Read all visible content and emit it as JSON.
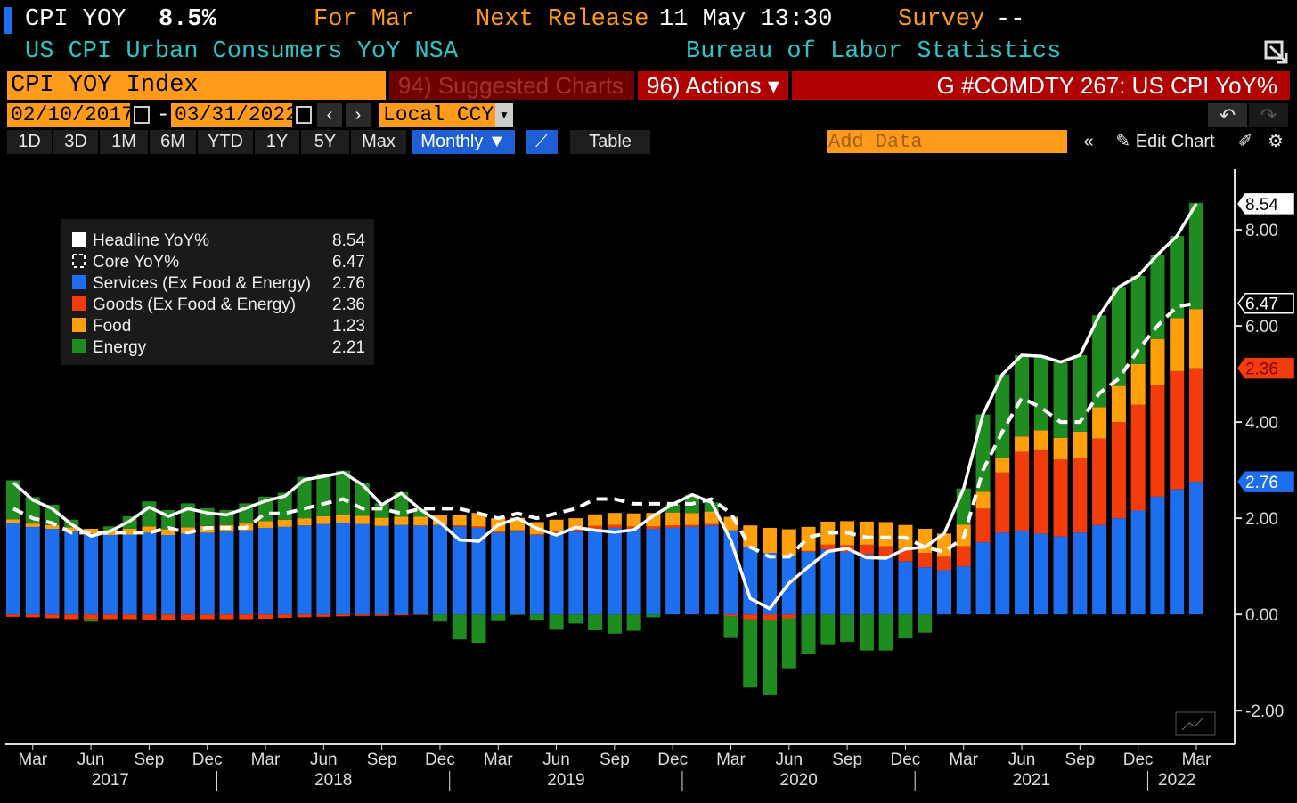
{
  "header": {
    "ticker": "CPI YOY",
    "last": "8.5%",
    "period": "For Mar",
    "release_label": "Next Release",
    "release_value": "11 May 13:30",
    "survey_label": "Survey",
    "survey_value": "--",
    "description": "US CPI Urban Consumers YoY NSA",
    "source": "Bureau of Labor Statistics"
  },
  "toolbar": {
    "security": "CPI YOY Index",
    "suggested": "94) Suggested Charts",
    "actions": "96) Actions ▾",
    "chart_name": "G #COMDTY 267: US CPI YoY%",
    "start_date": "02/10/2017",
    "date_separator": "-",
    "end_date": "03/31/2022",
    "currency": "Local CCY",
    "periods": [
      "1D",
      "3D",
      "1M",
      "6M",
      "YTD",
      "1Y",
      "5Y",
      "Max"
    ],
    "frequency": "Monthly ▼",
    "table": "Table",
    "add_data": "Add Data",
    "edit_chart": "Edit Chart"
  },
  "chart_data": {
    "type": "bar",
    "stacked": true,
    "categories": [
      null,
      "Mar",
      null,
      null,
      "Jun",
      null,
      null,
      "Sep",
      null,
      null,
      "Dec",
      null,
      null,
      "Mar",
      null,
      null,
      "Jun",
      null,
      null,
      "Sep",
      null,
      null,
      "Dec",
      null,
      null,
      "Mar",
      null,
      null,
      "Jun",
      null,
      null,
      "Sep",
      null,
      null,
      "Dec",
      null,
      null,
      "Mar",
      null,
      null,
      "Jun",
      null,
      null,
      "Sep",
      null,
      null,
      "Dec",
      null,
      null,
      "Mar",
      null,
      null,
      "Jun",
      null,
      null,
      "Sep",
      null,
      null,
      "Dec",
      null,
      null,
      "Mar"
    ],
    "years": [
      "2017",
      "2018",
      "2019",
      "2020",
      "2021",
      "2022"
    ],
    "ylim": [
      -2.7,
      9.26
    ],
    "yticks": [
      {
        "value": -2,
        "label": "-2.00"
      },
      {
        "value": 0,
        "label": "0.00"
      },
      {
        "value": 2,
        "label": "2.00"
      },
      {
        "value": 4,
        "label": "4.00"
      },
      {
        "value": 6,
        "label": "6.00"
      },
      {
        "value": 8,
        "label": "8.00"
      }
    ],
    "series": [
      {
        "name": "Headline YoY%",
        "type": "line",
        "color": "#ffffff",
        "values": [
          2.74,
          2.38,
          2.2,
          1.87,
          1.63,
          1.73,
          1.94,
          2.23,
          2.04,
          2.2,
          2.11,
          2.07,
          2.21,
          2.36,
          2.46,
          2.8,
          2.87,
          2.95,
          2.7,
          2.28,
          2.52,
          2.18,
          1.91,
          1.55,
          1.52,
          1.86,
          2.0,
          1.79,
          1.65,
          1.81,
          1.75,
          1.71,
          1.76,
          2.05,
          2.29,
          2.49,
          2.33,
          1.54,
          0.33,
          0.12,
          0.65,
          0.99,
          1.31,
          1.37,
          1.18,
          1.17,
          1.36,
          1.4,
          1.68,
          2.62,
          4.16,
          4.99,
          5.39,
          5.37,
          5.25,
          5.39,
          6.22,
          6.81,
          7.04,
          7.48,
          7.87,
          8.54
        ]
      },
      {
        "name": "Core YoY%",
        "type": "line",
        "dashed": true,
        "color": "#ffffff",
        "values": [
          2.2,
          2.0,
          1.9,
          1.7,
          1.7,
          1.7,
          1.7,
          1.7,
          1.8,
          1.7,
          1.8,
          1.8,
          1.8,
          2.1,
          2.1,
          2.2,
          2.3,
          2.4,
          2.2,
          2.2,
          2.1,
          2.2,
          2.2,
          2.2,
          2.1,
          2.0,
          2.1,
          2.0,
          2.1,
          2.2,
          2.4,
          2.4,
          2.3,
          2.3,
          2.3,
          2.3,
          2.4,
          2.1,
          1.4,
          1.2,
          1.2,
          1.6,
          1.7,
          1.7,
          1.6,
          1.6,
          1.6,
          1.4,
          1.3,
          1.6,
          3.0,
          3.8,
          4.5,
          4.3,
          4.0,
          4.0,
          4.6,
          4.9,
          5.5,
          6.0,
          6.4,
          6.47
        ]
      },
      {
        "name": "Services (Ex Food & Energy)",
        "type": "bar",
        "color": "#1e6ef0",
        "values": [
          1.9,
          1.82,
          1.78,
          1.72,
          1.68,
          1.65,
          1.66,
          1.7,
          1.65,
          1.68,
          1.7,
          1.72,
          1.75,
          1.8,
          1.82,
          1.85,
          1.88,
          1.9,
          1.88,
          1.84,
          1.86,
          1.85,
          1.86,
          1.83,
          1.8,
          1.7,
          1.72,
          1.65,
          1.7,
          1.72,
          1.78,
          1.8,
          1.78,
          1.78,
          1.8,
          1.82,
          1.85,
          1.75,
          1.4,
          1.28,
          1.22,
          1.3,
          1.35,
          1.3,
          1.25,
          1.18,
          1.1,
          0.98,
          0.92,
          1.0,
          1.5,
          1.7,
          1.73,
          1.68,
          1.62,
          1.7,
          1.86,
          2.0,
          2.16,
          2.45,
          2.6,
          2.76
        ]
      },
      {
        "name": "Goods (Ex Food & Energy)",
        "type": "bar",
        "color": "#f23c0c",
        "values": [
          -0.05,
          -0.06,
          -0.08,
          -0.1,
          -0.1,
          -0.1,
          -0.1,
          -0.12,
          -0.13,
          -0.11,
          -0.1,
          -0.1,
          -0.1,
          -0.09,
          -0.07,
          -0.06,
          -0.05,
          -0.04,
          -0.03,
          -0.03,
          -0.02,
          -0.01,
          0.0,
          0.02,
          0.03,
          0.02,
          0.03,
          0.02,
          0.02,
          0.04,
          0.06,
          0.06,
          0.05,
          0.05,
          0.05,
          0.04,
          0.03,
          -0.04,
          -0.1,
          -0.12,
          -0.08,
          0.02,
          0.1,
          0.14,
          0.2,
          0.24,
          0.26,
          0.3,
          0.28,
          0.42,
          0.7,
          1.25,
          1.65,
          1.75,
          1.6,
          1.55,
          1.8,
          2.0,
          2.2,
          2.33,
          2.46,
          2.36
        ]
      },
      {
        "name": "Food",
        "type": "bar",
        "color": "#ffa00a",
        "values": [
          0.08,
          0.07,
          0.08,
          0.09,
          0.1,
          0.1,
          0.12,
          0.13,
          0.12,
          0.13,
          0.14,
          0.14,
          0.14,
          0.14,
          0.15,
          0.15,
          0.16,
          0.16,
          0.17,
          0.17,
          0.17,
          0.18,
          0.2,
          0.22,
          0.28,
          0.28,
          0.26,
          0.25,
          0.25,
          0.24,
          0.24,
          0.25,
          0.27,
          0.28,
          0.27,
          0.25,
          0.26,
          0.28,
          0.45,
          0.52,
          0.55,
          0.5,
          0.48,
          0.5,
          0.48,
          0.5,
          0.5,
          0.5,
          0.48,
          0.45,
          0.35,
          0.3,
          0.32,
          0.4,
          0.45,
          0.55,
          0.65,
          0.75,
          0.85,
          0.95,
          1.1,
          1.23
        ]
      },
      {
        "name": "Energy",
        "type": "bar",
        "color": "#1f8c1f",
        "values": [
          0.81,
          0.55,
          0.42,
          0.16,
          -0.05,
          0.08,
          0.26,
          0.52,
          0.4,
          0.5,
          0.37,
          0.31,
          0.42,
          0.51,
          0.56,
          0.86,
          0.88,
          0.93,
          0.68,
          0.3,
          0.51,
          0.16,
          -0.15,
          -0.52,
          -0.59,
          -0.14,
          -0.01,
          -0.13,
          -0.32,
          -0.19,
          -0.33,
          -0.4,
          -0.34,
          -0.06,
          0.17,
          0.38,
          0.19,
          -0.45,
          -1.42,
          -1.56,
          -1.04,
          -0.83,
          -0.62,
          -0.57,
          -0.75,
          -0.75,
          -0.5,
          -0.38,
          0.0,
          0.75,
          1.61,
          1.74,
          1.69,
          1.54,
          1.58,
          1.59,
          1.91,
          2.06,
          1.83,
          1.75,
          1.71,
          2.21
        ]
      }
    ]
  }
}
